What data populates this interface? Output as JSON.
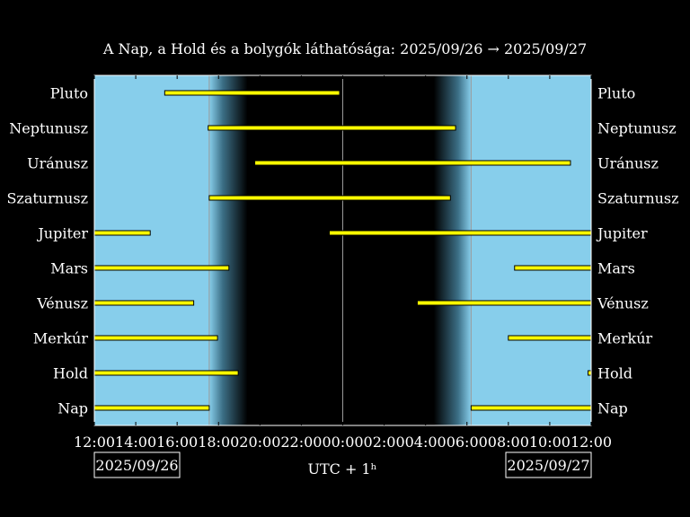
{
  "chart_data": {
    "type": "gantt",
    "title": "A Nap, a Hold és a bolygók láthatósága: 2025/09/26 → 2025/09/27",
    "xlabel": "UTC + 1ʰ",
    "date_start": "2025/09/26",
    "date_end": "2025/09/27",
    "x_range_hours": [
      12,
      36
    ],
    "x_ticks": [
      {
        "h": 12,
        "label": "12:00"
      },
      {
        "h": 14,
        "label": "14:00"
      },
      {
        "h": 16,
        "label": "16:00"
      },
      {
        "h": 18,
        "label": "18:00"
      },
      {
        "h": 20,
        "label": "20:00"
      },
      {
        "h": 22,
        "label": "22:00"
      },
      {
        "h": 24,
        "label": "00:00"
      },
      {
        "h": 26,
        "label": "02:00"
      },
      {
        "h": 28,
        "label": "04:00"
      },
      {
        "h": 30,
        "label": "06:00"
      },
      {
        "h": 32,
        "label": "08:00"
      },
      {
        "h": 34,
        "label": "10:00"
      },
      {
        "h": 36,
        "label": "12:00"
      }
    ],
    "background": {
      "sunset_h": 17.55,
      "dusk_end_h": 19.4,
      "dawn_start_h": 28.4,
      "sunrise_h": 30.2,
      "midnight_h": 24.0,
      "day_color": "#87ceeb",
      "night_color": "#000000"
    },
    "bar_color": "#ffff00",
    "rows": [
      {
        "name": "Pluto",
        "segments": [
          [
            15.4,
            23.85
          ]
        ]
      },
      {
        "name": "Neptunusz",
        "segments": [
          [
            17.5,
            29.45
          ]
        ]
      },
      {
        "name": "Uránusz",
        "segments": [
          [
            19.75,
            35.0
          ]
        ]
      },
      {
        "name": "Szaturnusz",
        "segments": [
          [
            17.55,
            29.2
          ]
        ]
      },
      {
        "name": "Jupiter",
        "segments": [
          [
            12.0,
            14.7
          ],
          [
            23.35,
            36.0
          ]
        ]
      },
      {
        "name": "Mars",
        "segments": [
          [
            12.0,
            18.5
          ],
          [
            32.3,
            36.0
          ]
        ]
      },
      {
        "name": "Vénusz",
        "segments": [
          [
            12.0,
            16.8
          ],
          [
            27.6,
            36.0
          ]
        ]
      },
      {
        "name": "Merkúr",
        "segments": [
          [
            12.0,
            17.95
          ],
          [
            32.0,
            36.0
          ]
        ]
      },
      {
        "name": "Hold",
        "segments": [
          [
            12.0,
            18.95
          ],
          [
            35.85,
            36.0
          ]
        ]
      },
      {
        "name": "Nap",
        "segments": [
          [
            12.0,
            17.55
          ],
          [
            30.2,
            36.0
          ]
        ]
      }
    ]
  }
}
